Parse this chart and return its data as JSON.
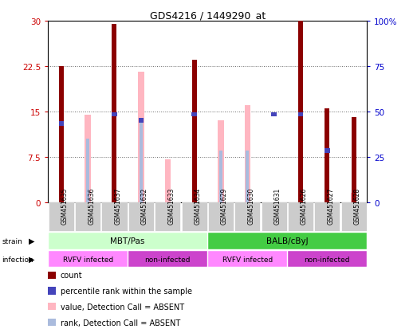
{
  "title": "GDS4216 / 1449290_at",
  "samples": [
    "GSM451635",
    "GSM451636",
    "GSM451637",
    "GSM451632",
    "GSM451633",
    "GSM451634",
    "GSM451629",
    "GSM451630",
    "GSM451631",
    "GSM451626",
    "GSM451627",
    "GSM451628"
  ],
  "count_values": [
    22.5,
    0,
    29.5,
    0,
    0,
    23.5,
    0,
    0,
    0,
    30,
    15.5,
    14
  ],
  "percentile_values": [
    13,
    0,
    14.5,
    13.5,
    0,
    14.5,
    0,
    0,
    14.5,
    14.5,
    8.5,
    0
  ],
  "pink_bar_values": [
    0,
    14.5,
    0,
    21.5,
    7,
    0,
    13.5,
    16,
    0,
    0,
    0,
    1.5
  ],
  "light_blue_values": [
    0,
    10.5,
    0,
    13.5,
    0,
    0,
    8.5,
    8.5,
    0,
    0,
    0,
    2.5
  ],
  "ylim": [
    0,
    30
  ],
  "yticks": [
    0,
    7.5,
    15,
    22.5,
    30
  ],
  "yticklabels": [
    "0",
    "7.5",
    "15",
    "22.5",
    "30"
  ],
  "y2ticks": [
    0,
    25,
    50,
    75,
    100
  ],
  "y2ticklabels": [
    "0",
    "25",
    "50",
    "75",
    "100%"
  ],
  "bar_color": "#8b0000",
  "pink_color": "#ffb6c1",
  "blue_color": "#4444bb",
  "light_blue_color": "#aabbdd",
  "left_label_color": "#cc0000",
  "right_label_color": "#0000cc",
  "grid_color": "#666666",
  "mbt_color": "#ccffcc",
  "balb_color": "#44cc44",
  "rvfv_color": "#ff88ff",
  "noninfect_color": "#cc44cc",
  "sample_bg": "#cccccc"
}
